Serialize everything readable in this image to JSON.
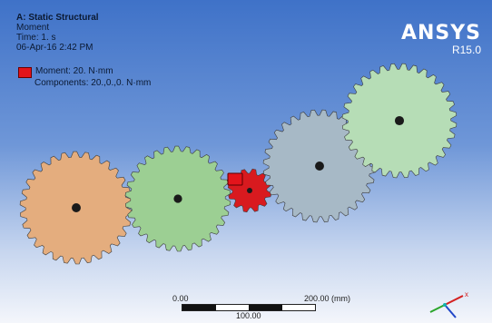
{
  "info": {
    "title": "A: Static Structural",
    "result": "Moment",
    "time": "Time: 1. s",
    "date": "06-Apr-16 2:42 PM"
  },
  "legend": {
    "moment": "Moment: 20. N·mm",
    "components": "Components: 20.,0.,0. N·mm",
    "color": "#e3141b"
  },
  "brand": {
    "name": "ANSYS",
    "version": "R15.0"
  },
  "scale": {
    "start": "0.00",
    "end": "200.00 (mm)",
    "mid": "100.00"
  },
  "gears": [
    {
      "name": "gear-orange",
      "color": "#e4ad7e"
    },
    {
      "name": "gear-green",
      "color": "#9ccf93"
    },
    {
      "name": "gear-red",
      "color": "#d81a1f"
    },
    {
      "name": "gear-gray",
      "color": "#a7b9c6"
    },
    {
      "name": "gear-light-green",
      "color": "#b6ddb6"
    }
  ],
  "triad": {
    "icon": "axis-triad-icon"
  }
}
